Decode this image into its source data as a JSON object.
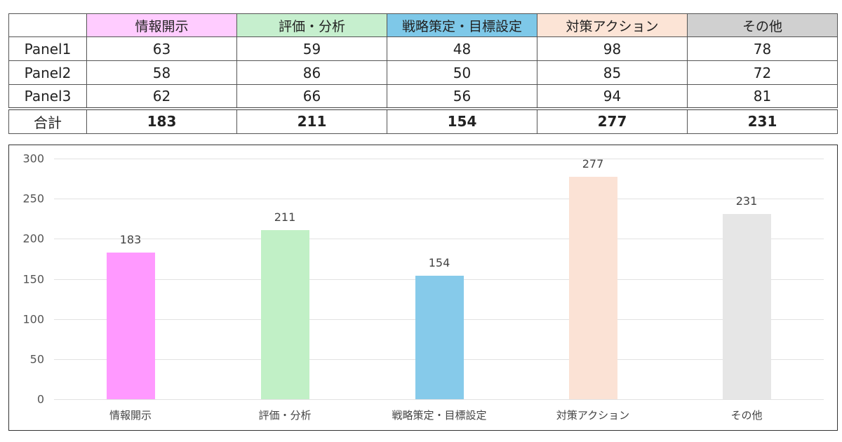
{
  "table": {
    "corner": "",
    "headers": [
      {
        "label": "情報開示",
        "color": "#FFCCFF"
      },
      {
        "label": "評価・分析",
        "color": "#C6EFCE"
      },
      {
        "label": "戦略策定・目標設定",
        "color": "#7EC8E8"
      },
      {
        "label": "対策アクション",
        "color": "#FCE4D6"
      },
      {
        "label": "その他",
        "color": "#D0D0D0"
      }
    ],
    "rows": [
      {
        "label": "Panel1",
        "values": [
          "63",
          "59",
          "48",
          "98",
          "78"
        ]
      },
      {
        "label": "Panel2",
        "values": [
          "58",
          "86",
          "50",
          "85",
          "72"
        ]
      },
      {
        "label": "Panel3",
        "values": [
          "62",
          "66",
          "56",
          "94",
          "81"
        ]
      }
    ],
    "total": {
      "label": "合計",
      "values": [
        "183",
        "211",
        "154",
        "277",
        "231"
      ]
    }
  },
  "chart_data": {
    "type": "bar",
    "title": "",
    "xlabel": "",
    "ylabel": "",
    "categories": [
      "情報開示",
      "評価・分析",
      "戦略策定・目標設定",
      "対策アクション",
      "その他"
    ],
    "values": [
      183,
      211,
      154,
      277,
      231
    ],
    "value_labels": [
      "183",
      "211",
      "154",
      "277",
      "231"
    ],
    "colors": [
      "#FF99FF",
      "#C1F0C6",
      "#86CAEA",
      "#FBE2D5",
      "#E6E6E6"
    ],
    "ylim": [
      0,
      300
    ],
    "yticks": [
      "0",
      "50",
      "100",
      "150",
      "200",
      "250",
      "300"
    ],
    "grid": true,
    "legend": "none"
  }
}
